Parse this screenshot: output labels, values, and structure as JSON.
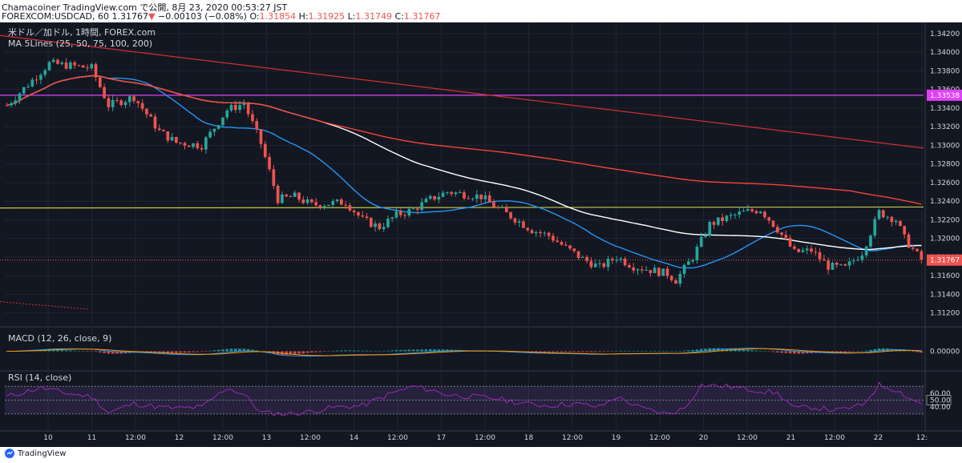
{
  "header": {
    "line1": "Chamacoiner TradingView.com で公開, 8月 23, 2020 00:53:27 JST",
    "symbol": "FOREXCOM:USDCAD, 60",
    "last": "1.31767",
    "change": "−0.00103 (−0.08%)",
    "o_label": "O:",
    "o": "1.31854",
    "h_label": "H:",
    "h": "1.31925",
    "l_label": "L:",
    "l": "1.31749",
    "c_label": "C:",
    "c": "1.31767"
  },
  "legend": {
    "instrument": "米ドル／加ドル, 1時間, FOREX.com",
    "ma": "MA 5Lines (25, 50, 75, 100, 200)"
  },
  "macd": {
    "label": "MACD (12, 26, close, 9)",
    "zero_label": "0.00000"
  },
  "rsi": {
    "label": "RSI (14, close)",
    "ticks": [
      "60.00",
      "50.00",
      "40.00"
    ]
  },
  "price_labels": {
    "last": "1.31767",
    "hline": "1.33538"
  },
  "footer": {
    "brand": "TradingView"
  },
  "colors": {
    "background": "#131722",
    "up": "#26a69a",
    "down": "#ef5350",
    "ma_white": "#ffffff",
    "ma_blue": "#2196f3",
    "ma_red": "#f44336",
    "hline_magenta": "#e040fb",
    "hline_yellow": "#c6c84a",
    "rsi_line": "#9c27b0"
  },
  "chart_data": [
    {
      "type": "candlestick",
      "title": "FOREXCOM:USDCAD, 60",
      "y_ticks": [
        "1.34200",
        "1.34000",
        "1.33800",
        "1.33600",
        "1.33400",
        "1.33200",
        "1.33000",
        "1.32800",
        "1.32600",
        "1.32400",
        "1.32200",
        "1.32000",
        "1.31800",
        "1.31600",
        "1.31400",
        "1.31200"
      ],
      "ylim": [
        1.3105,
        1.3432
      ],
      "x_ticks": [
        "10",
        "11",
        "12:00",
        "12",
        "12:00",
        "13",
        "12:00",
        "14",
        "12:00",
        "17",
        "12:00",
        "18",
        "12:00",
        "19",
        "12:00",
        "20",
        "12:00",
        "21",
        "12:00",
        "22",
        "12:"
      ],
      "ohlc_path_approx": [
        [
          0,
          1.3343
        ],
        [
          10,
          1.3388
        ],
        [
          20,
          1.3383
        ],
        [
          24,
          1.3343
        ],
        [
          30,
          1.3352
        ],
        [
          36,
          1.3315
        ],
        [
          40,
          1.3303
        ],
        [
          46,
          1.33
        ],
        [
          52,
          1.3338
        ],
        [
          56,
          1.3345
        ],
        [
          60,
          1.3302
        ],
        [
          64,
          1.3242
        ],
        [
          68,
          1.3245
        ],
        [
          72,
          1.3236
        ],
        [
          80,
          1.3239
        ],
        [
          84,
          1.322
        ],
        [
          88,
          1.3212
        ],
        [
          92,
          1.3225
        ],
        [
          96,
          1.3231
        ],
        [
          100,
          1.3242
        ],
        [
          104,
          1.325
        ],
        [
          112,
          1.3245
        ],
        [
          116,
          1.3232
        ],
        [
          120,
          1.3221
        ],
        [
          124,
          1.3209
        ],
        [
          128,
          1.3203
        ],
        [
          132,
          1.319
        ],
        [
          136,
          1.3178
        ],
        [
          140,
          1.3169
        ],
        [
          144,
          1.318
        ],
        [
          148,
          1.317
        ],
        [
          152,
          1.3166
        ],
        [
          156,
          1.3162
        ],
        [
          158,
          1.3155
        ],
        [
          162,
          1.318
        ],
        [
          166,
          1.3215
        ],
        [
          170,
          1.3222
        ],
        [
          174,
          1.3228
        ],
        [
          178,
          1.3231
        ],
        [
          182,
          1.321
        ],
        [
          186,
          1.3185
        ],
        [
          190,
          1.3187
        ],
        [
          194,
          1.317
        ],
        [
          198,
          1.3168
        ],
        [
          202,
          1.3185
        ],
        [
          206,
          1.3228
        ],
        [
          210,
          1.322
        ],
        [
          212,
          1.32
        ],
        [
          214,
          1.3188
        ],
        [
          216,
          1.3177
        ]
      ],
      "last_price": 1.31767,
      "hlines": [
        1.33538,
        1.32327
      ]
    },
    {
      "type": "line",
      "title": "MACD (12, 26, close, 9)",
      "zero_label": "0.00000"
    },
    {
      "type": "line",
      "title": "RSI (14, close)",
      "levels": [
        70,
        50,
        30
      ],
      "tick_labels": [
        "60.00",
        "50.00",
        "40.00"
      ],
      "ylim": [
        10,
        90
      ],
      "values_approx": [
        [
          0,
          55
        ],
        [
          8,
          68
        ],
        [
          14,
          60
        ],
        [
          20,
          55
        ],
        [
          24,
          32
        ],
        [
          30,
          45
        ],
        [
          36,
          40
        ],
        [
          40,
          38
        ],
        [
          46,
          40
        ],
        [
          52,
          68
        ],
        [
          56,
          58
        ],
        [
          60,
          32
        ],
        [
          66,
          30
        ],
        [
          70,
          32
        ],
        [
          78,
          40
        ],
        [
          84,
          42
        ],
        [
          90,
          58
        ],
        [
          96,
          70
        ],
        [
          100,
          65
        ],
        [
          104,
          58
        ],
        [
          110,
          55
        ],
        [
          116,
          52
        ],
        [
          122,
          45
        ],
        [
          128,
          42
        ],
        [
          134,
          45
        ],
        [
          140,
          40
        ],
        [
          144,
          55
        ],
        [
          150,
          38
        ],
        [
          156,
          30
        ],
        [
          160,
          38
        ],
        [
          164,
          72
        ],
        [
          170,
          70
        ],
        [
          176,
          65
        ],
        [
          182,
          60
        ],
        [
          186,
          38
        ],
        [
          190,
          40
        ],
        [
          196,
          35
        ],
        [
          202,
          42
        ],
        [
          206,
          72
        ],
        [
          210,
          65
        ],
        [
          214,
          50
        ],
        [
          216,
          45
        ]
      ]
    }
  ]
}
